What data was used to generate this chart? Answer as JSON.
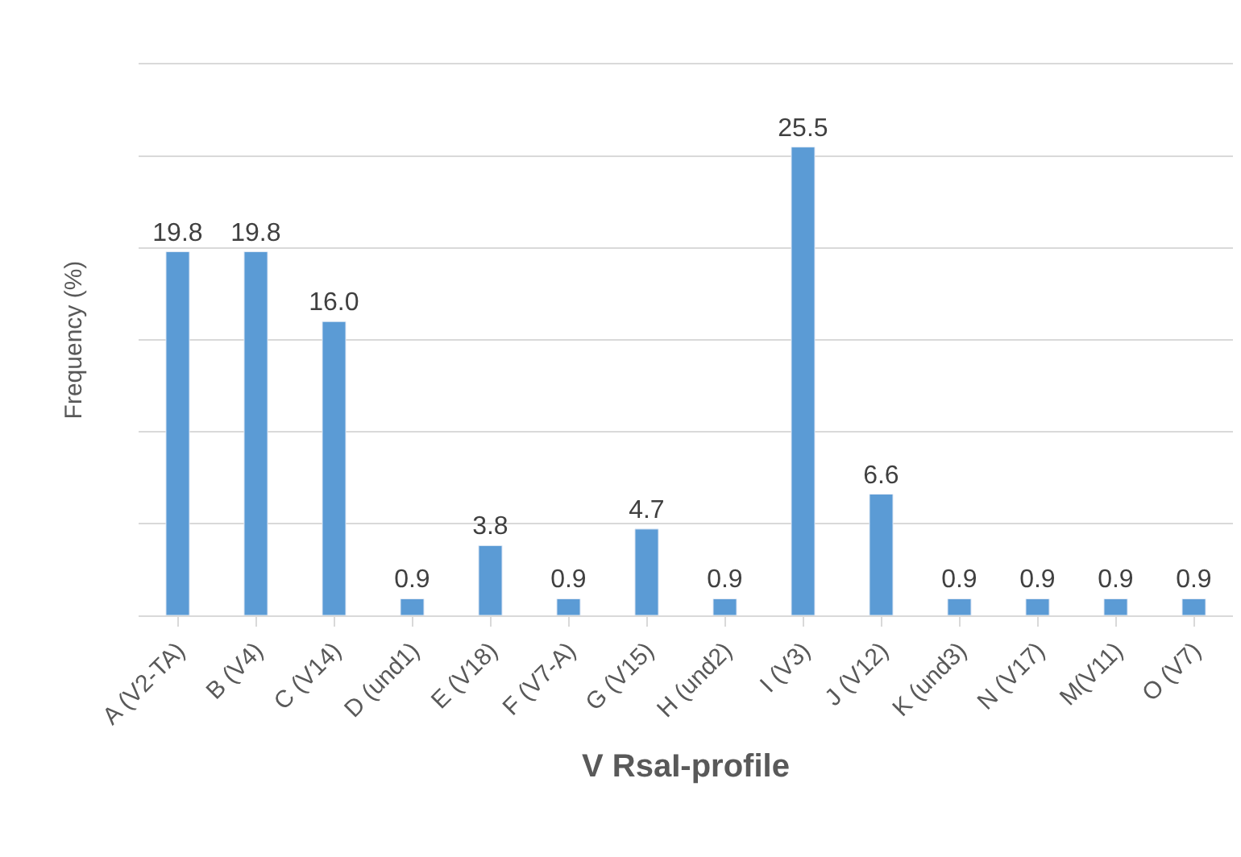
{
  "chart_data": {
    "type": "bar",
    "categories": [
      "A (V2-TA)",
      "B (V4)",
      "C (V14)",
      "D (und1)",
      "E (V18)",
      "F (V7-A)",
      "G (V15)",
      "H (und2)",
      "I (V3)",
      "J (V12)",
      "K (und3)",
      "N (V17)",
      "M(V11)",
      "O (V7)"
    ],
    "values": [
      19.8,
      19.8,
      16.0,
      0.9,
      3.8,
      0.9,
      4.7,
      0.9,
      25.5,
      6.6,
      0.9,
      0.9,
      0.9,
      0.9
    ],
    "value_labels": [
      "19.8",
      "19.8",
      "16.0",
      "0.9",
      "3.8",
      "0.9",
      "4.7",
      "0.9",
      "25.5",
      "6.6",
      "0.9",
      "0.9",
      "0.9",
      "0.9"
    ],
    "color": "#5b9bd5",
    "xlabel": "V RsaI-profile",
    "ylabel": "Frequency (%)",
    "ylim": [
      0,
      30
    ],
    "yticks": [
      {
        "value": 0,
        "label": null
      },
      {
        "value": 5,
        "label": null
      },
      {
        "value": 10,
        "label": null
      },
      {
        "value": 15,
        "label": null
      },
      {
        "value": 20,
        "label": null
      },
      {
        "value": 25,
        "label": null
      },
      {
        "value": 30,
        "label": null
      }
    ],
    "grid": "y",
    "tick_labels": "x",
    "legend": false
  }
}
